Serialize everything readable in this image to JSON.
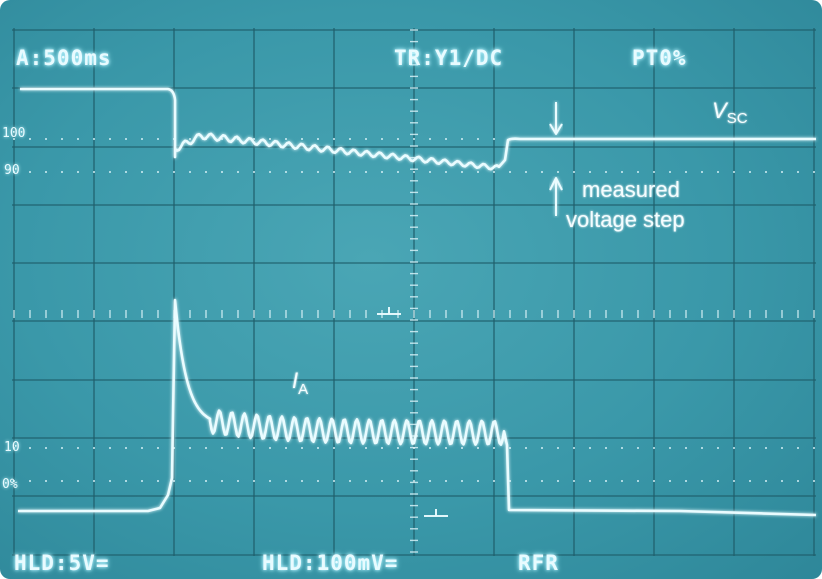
{
  "osd": {
    "timebase": "A:500ms",
    "trigger": "TR:Y1∕DC",
    "pretrigger": "PT0%",
    "channel1": "HLD:5V=",
    "channel2": "HLD:100mV=",
    "mode": "RFR"
  },
  "annotations": {
    "vsc_symbol": "V",
    "vsc_subscript": "SC",
    "ia_symbol": "I",
    "ia_subscript": "A",
    "step_line1": "measured",
    "step_line2": "voltage step"
  },
  "scale_marks": {
    "left_upper_100": "100",
    "left_upper_90": "90",
    "left_lower_10": "10",
    "left_lower_0": "0%"
  },
  "colors": {
    "screen": "#3a98a9",
    "trace": "#eafcff",
    "grid": "#1f5e6b"
  }
}
